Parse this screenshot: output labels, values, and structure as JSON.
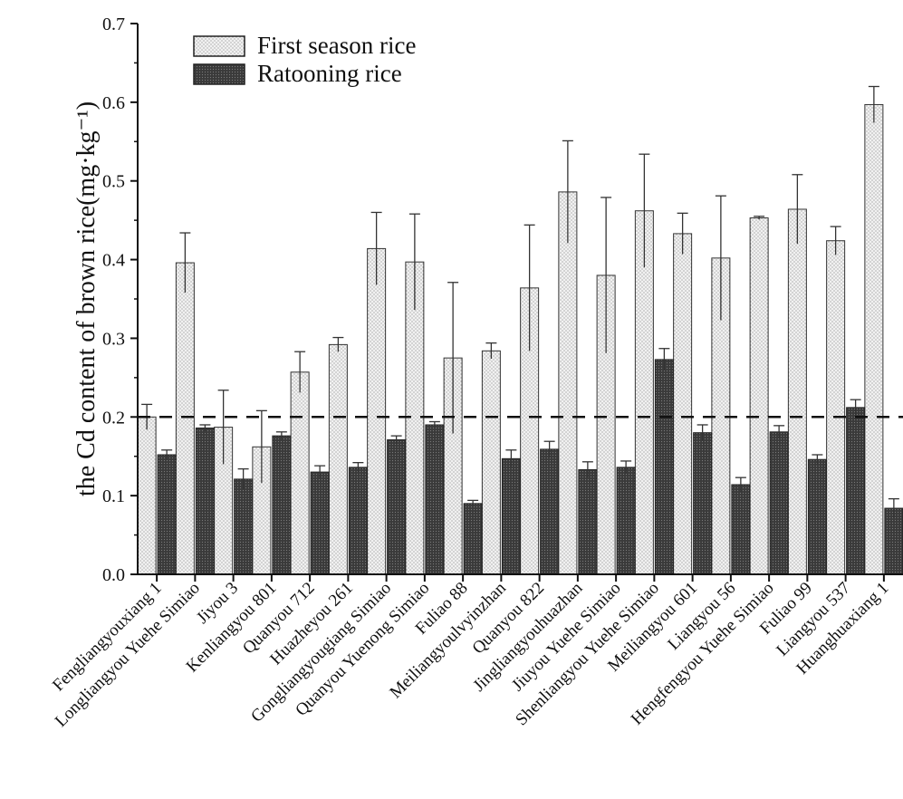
{
  "chart_data": {
    "type": "bar",
    "title": "",
    "xlabel": "",
    "ylabel": "the Cd content of brown rice(mg·kg⁻¹)",
    "ylim": [
      0.0,
      0.7
    ],
    "yticks": [
      "0.0",
      "0.1",
      "0.2",
      "0.3",
      "0.4",
      "0.5",
      "0.6",
      "0.7"
    ],
    "reference_line": 0.2,
    "legend_position": "top-left",
    "categories": [
      "Fengliangyouxiang 1",
      "Longliangyou Yuehe Simiao",
      "Jiyou 3",
      "Kenliangyou 801",
      "Quanyou 712",
      "Huazheyou 261",
      "Gongliangyougiang Simiao",
      "Quanyou Yuenong Simiao",
      "Fuliao 88",
      "Meiliangyoulvyinzhan",
      "Quanyou 822",
      "Jingliangyouhuazhan",
      "Jiuyou Yuehe Simiao",
      "Shenliangyou Yuehe Simiao",
      "Meiliangyou 601",
      "Liangyou 56",
      "Hengfengyou Yuehe Simiao",
      "Fuliao 99",
      "Liangyou 537",
      "Huanghuaxiang 1"
    ],
    "series": [
      {
        "name": "First season rice",
        "color": "#ebebeb",
        "values": [
          0.2,
          0.396,
          0.187,
          0.162,
          0.257,
          0.292,
          0.414,
          0.397,
          0.275,
          0.284,
          0.364,
          0.486,
          0.38,
          0.462,
          0.433,
          0.402,
          0.453,
          0.464,
          0.424,
          0.597
        ],
        "errors": [
          0.016,
          0.038,
          0.047,
          0.046,
          0.026,
          0.009,
          0.046,
          0.061,
          0.096,
          0.01,
          0.08,
          0.065,
          0.099,
          0.072,
          0.026,
          0.079,
          0.002,
          0.044,
          0.018,
          0.023
        ]
      },
      {
        "name": "Ratooning rice",
        "color": "#4d4d4d",
        "values": [
          0.152,
          0.186,
          0.121,
          0.176,
          0.13,
          0.136,
          0.171,
          0.19,
          0.09,
          0.147,
          0.159,
          0.133,
          0.136,
          0.273,
          0.18,
          0.114,
          0.181,
          0.146,
          0.212,
          0.084
        ],
        "errors": [
          0.006,
          0.004,
          0.013,
          0.005,
          0.008,
          0.006,
          0.005,
          0.004,
          0.004,
          0.011,
          0.01,
          0.01,
          0.008,
          0.014,
          0.01,
          0.009,
          0.008,
          0.006,
          0.01,
          0.012
        ]
      }
    ]
  }
}
